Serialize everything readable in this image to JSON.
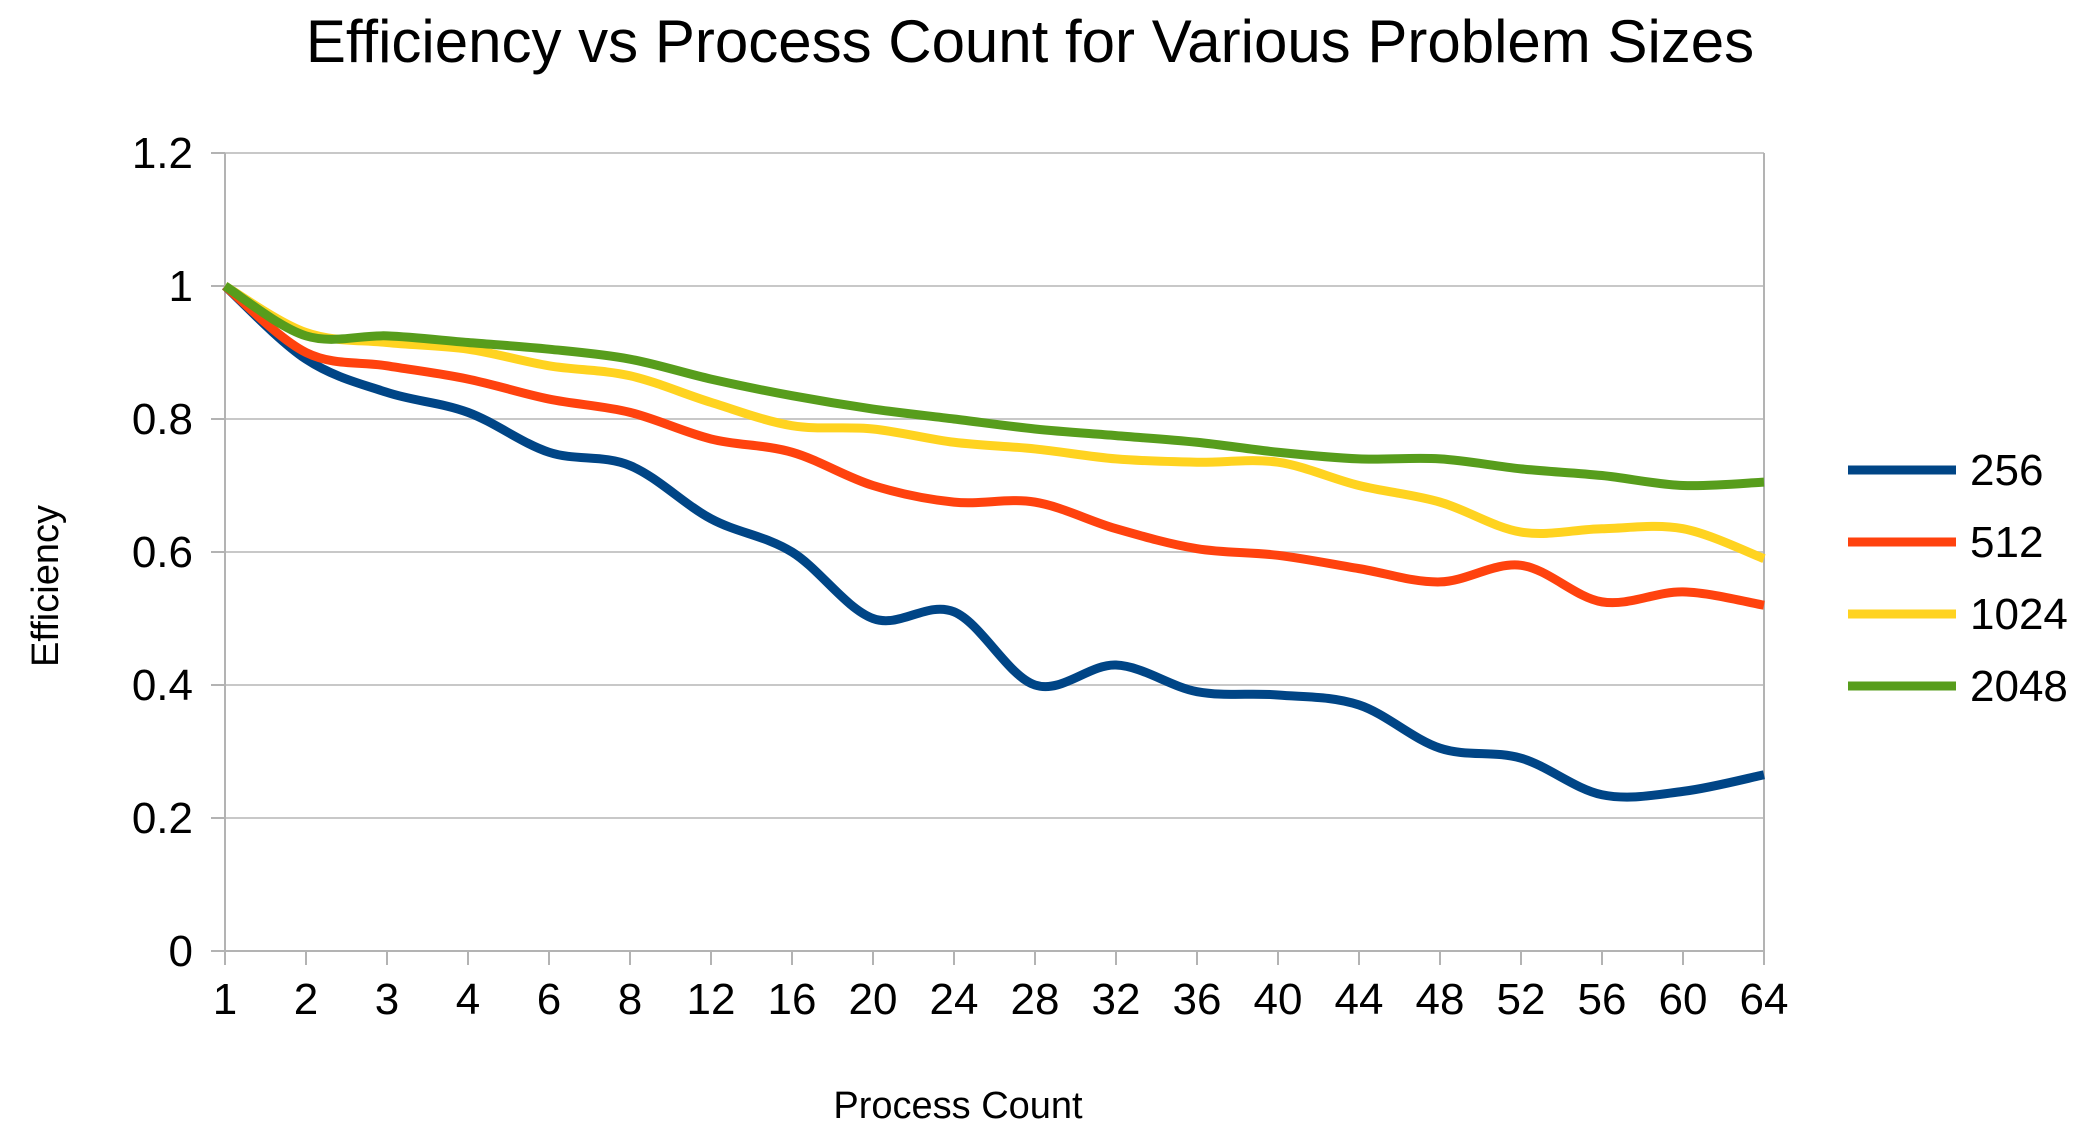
{
  "chart_data": {
    "type": "line",
    "title": "Efficiency vs Process Count for Various Problem Sizes",
    "xlabel": "Process Count",
    "ylabel": "Efficiency",
    "categories": [
      "1",
      "2",
      "3",
      "4",
      "6",
      "8",
      "12",
      "16",
      "20",
      "24",
      "28",
      "32",
      "36",
      "40",
      "44",
      "48",
      "52",
      "56",
      "60",
      "64"
    ],
    "ylim": [
      0,
      1.2
    ],
    "yticks": [
      "0",
      "0.2",
      "0.4",
      "0.6",
      "0.8",
      "1",
      "1.2"
    ],
    "grid": true,
    "smooth": true,
    "legend_position": "right",
    "series": [
      {
        "name": "256",
        "color": "#004586",
        "values": [
          1.0,
          0.89,
          0.84,
          0.81,
          0.75,
          0.73,
          0.65,
          0.6,
          0.5,
          0.51,
          0.4,
          0.43,
          0.39,
          0.385,
          0.37,
          0.305,
          0.29,
          0.235,
          0.24,
          0.265
        ]
      },
      {
        "name": "512",
        "color": "#ff420e",
        "values": [
          1.0,
          0.9,
          0.88,
          0.86,
          0.83,
          0.81,
          0.77,
          0.75,
          0.7,
          0.675,
          0.675,
          0.635,
          0.605,
          0.595,
          0.575,
          0.555,
          0.58,
          0.525,
          0.54,
          0.52
        ]
      },
      {
        "name": "1024",
        "color": "#ffd320",
        "values": [
          1.0,
          0.93,
          0.915,
          0.905,
          0.88,
          0.865,
          0.825,
          0.79,
          0.785,
          0.765,
          0.755,
          0.74,
          0.735,
          0.735,
          0.7,
          0.675,
          0.63,
          0.635,
          0.635,
          0.59
        ]
      },
      {
        "name": "2048",
        "color": "#579d1c",
        "values": [
          1.0,
          0.925,
          0.925,
          0.915,
          0.905,
          0.89,
          0.86,
          0.835,
          0.815,
          0.8,
          0.785,
          0.775,
          0.765,
          0.75,
          0.74,
          0.74,
          0.725,
          0.715,
          0.7,
          0.705
        ]
      }
    ]
  }
}
